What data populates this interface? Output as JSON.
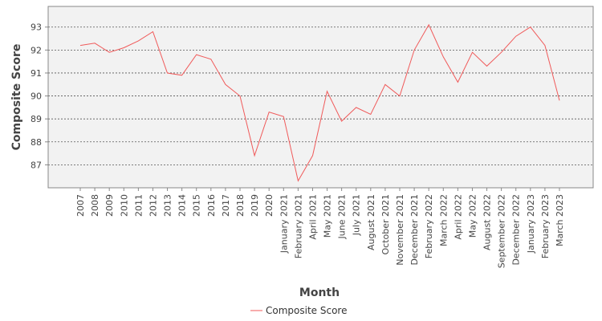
{
  "chart_data": {
    "type": "line",
    "xlabel": "Month",
    "ylabel": "Composite Score",
    "ylim": [
      86.0,
      93.9
    ],
    "yticks": [
      87,
      88,
      89,
      90,
      91,
      92,
      93
    ],
    "grid": true,
    "legend_position": "bottom-center",
    "categories": [
      "2007",
      "2008",
      "2009",
      "2010",
      "2011",
      "2012",
      "2013",
      "2014",
      "2015",
      "2016",
      "2017",
      "2018",
      "2019",
      "2020",
      "January 2021",
      "February 2021",
      "April 2021",
      "May 2021",
      "June 2021",
      "July 2021",
      "August 2021",
      "October 2021",
      "November 2021",
      "December 2021",
      "February 2022",
      "March 2022",
      "April 2022",
      "May 2022",
      "August 2022",
      "September 2022",
      "December 2022",
      "January 2023",
      "February 2023",
      "March 2023"
    ],
    "series": [
      {
        "name": "Composite Score",
        "color": "#f05a5a",
        "values": [
          92.2,
          92.3,
          91.9,
          92.1,
          92.4,
          92.8,
          91.0,
          90.9,
          91.8,
          91.6,
          90.5,
          90.0,
          87.4,
          89.3,
          89.1,
          86.3,
          87.4,
          90.2,
          88.9,
          89.5,
          89.2,
          90.5,
          90.0,
          92.0,
          93.1,
          91.7,
          90.6,
          91.9,
          91.3,
          91.9,
          92.6,
          93.0,
          92.2,
          89.8
        ]
      }
    ]
  }
}
